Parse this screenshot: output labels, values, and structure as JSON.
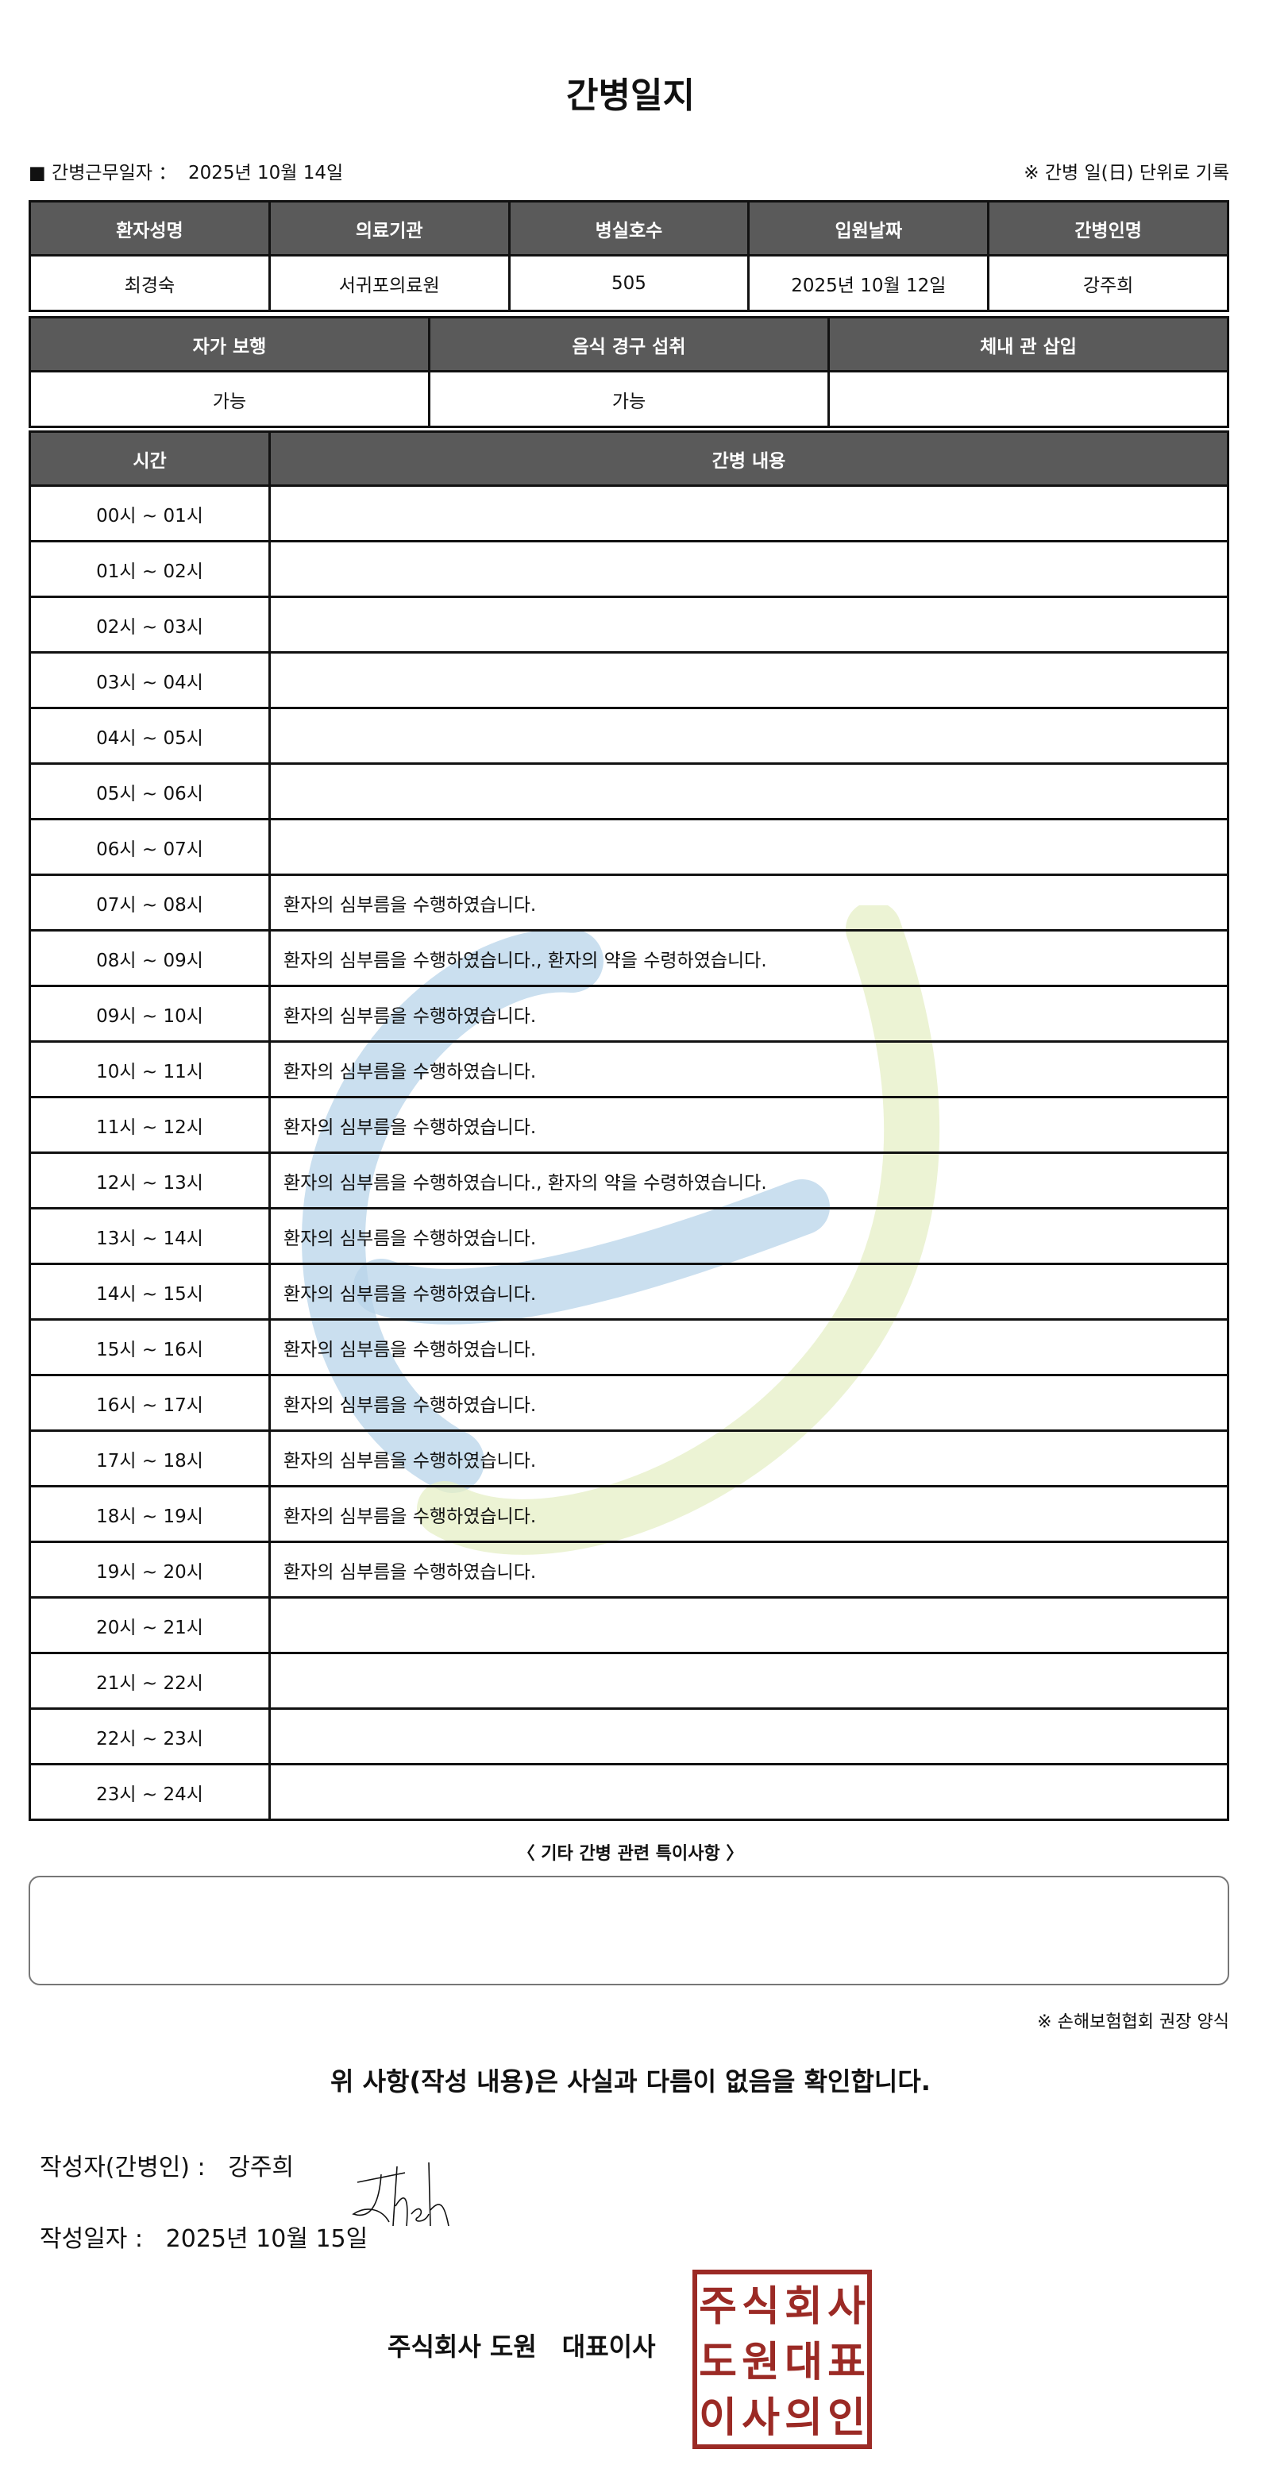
{
  "title": "간병일지",
  "duty_label": "■ 간병근무일자 ：",
  "duty_date": "2025년 10월 14일",
  "unit_note": "※ 간병 일(日) 단위로 기록",
  "info": {
    "headers": [
      "환자성명",
      "의료기관",
      "병실호수",
      "입원날짜",
      "간병인명"
    ],
    "values": [
      "최경숙",
      "서귀포의료원",
      "505",
      "2025년 10월 12일",
      "강주희"
    ]
  },
  "status": {
    "headers": [
      "자가 보행",
      "음식 경구 섭취",
      "체내 관 삽입"
    ],
    "values": [
      "가능",
      "가능",
      ""
    ]
  },
  "log": {
    "headers": [
      "시간",
      "간병 내용"
    ],
    "rows": [
      [
        "00시 ~ 01시",
        ""
      ],
      [
        "01시 ~ 02시",
        ""
      ],
      [
        "02시 ~ 03시",
        ""
      ],
      [
        "03시 ~ 04시",
        ""
      ],
      [
        "04시 ~ 05시",
        ""
      ],
      [
        "05시 ~ 06시",
        ""
      ],
      [
        "06시 ~ 07시",
        ""
      ],
      [
        "07시 ~ 08시",
        "환자의 심부름을 수행하였습니다."
      ],
      [
        "08시 ~ 09시",
        "환자의 심부름을 수행하였습니다., 환자의 약을 수령하였습니다."
      ],
      [
        "09시 ~ 10시",
        "환자의 심부름을 수행하였습니다."
      ],
      [
        "10시 ~ 11시",
        "환자의 심부름을 수행하였습니다."
      ],
      [
        "11시 ~ 12시",
        "환자의 심부름을 수행하였습니다."
      ],
      [
        "12시 ~ 13시",
        "환자의 심부름을 수행하였습니다., 환자의 약을 수령하였습니다."
      ],
      [
        "13시 ~ 14시",
        "환자의 심부름을 수행하였습니다."
      ],
      [
        "14시 ~ 15시",
        "환자의 심부름을 수행하였습니다."
      ],
      [
        "15시 ~ 16시",
        "환자의 심부름을 수행하였습니다."
      ],
      [
        "16시 ~ 17시",
        "환자의 심부름을 수행하였습니다."
      ],
      [
        "17시 ~ 18시",
        "환자의 심부름을 수행하였습니다."
      ],
      [
        "18시 ~ 19시",
        "환자의 심부름을 수행하였습니다."
      ],
      [
        "19시 ~ 20시",
        "환자의 심부름을 수행하였습니다."
      ],
      [
        "20시 ~ 21시",
        ""
      ],
      [
        "21시 ~ 22시",
        ""
      ],
      [
        "22시 ~ 23시",
        ""
      ],
      [
        "23시 ~ 24시",
        ""
      ]
    ]
  },
  "notes_title": "〈 기타 간병 관련 특이사항 〉",
  "notes_value": "",
  "form_note": "※ 손해보험협회 권장 양식",
  "confirm": "위 사항(작성 내용)은 사실과 다름이 없음을 확인합니다.",
  "writer_label": "작성자(간병인) :",
  "writer_name": "강주희",
  "write_date_label": "작성일자 :",
  "write_date": "2025년 10월 15일",
  "company": "주식회사 도원　대표이사",
  "seal_text": "주식회사도원대표이사의인",
  "colors": {
    "header_bg": "#5a5a5a",
    "seal": "#9b2a25",
    "watermark_blue": "#b8d4ea",
    "watermark_green": "#e6efc6"
  }
}
